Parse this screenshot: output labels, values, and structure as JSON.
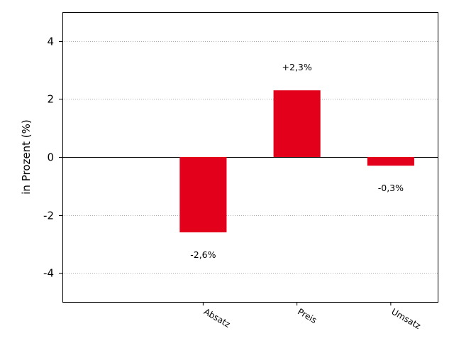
{
  "chart_data": {
    "type": "bar",
    "categories": [
      "Absatz",
      "Preis",
      "Umsatz"
    ],
    "values": [
      -2.6,
      2.3,
      -0.3
    ],
    "data_labels": [
      "-2,6%",
      "+2,3%",
      "-0,3%"
    ],
    "title": "",
    "xlabel": "",
    "ylabel": "in Prozent (%)",
    "ylim": [
      -5,
      5
    ],
    "yticks": [
      -4,
      -2,
      0,
      2,
      4
    ],
    "ytick_labels": [
      "-4",
      "-2",
      "0",
      "2",
      "4"
    ],
    "grid": true,
    "bar_color": "#e2001a"
  }
}
